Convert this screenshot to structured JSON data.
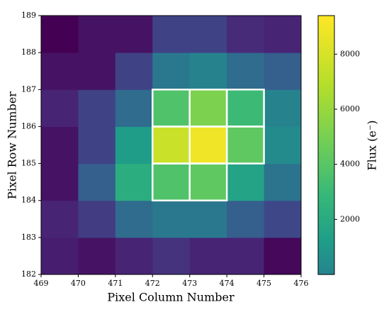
{
  "chart_data": {
    "type": "heatmap",
    "x_label": "Pixel Column Number",
    "y_label": "Pixel Row Number",
    "colorbar_label": "Flux (e⁻)",
    "xlim": [
      469,
      476
    ],
    "ylim": [
      182,
      189
    ],
    "xticks": [
      469,
      470,
      471,
      472,
      473,
      474,
      475,
      476
    ],
    "yticks": [
      182,
      183,
      184,
      185,
      186,
      187,
      188,
      189
    ],
    "colormap": [
      "#440154",
      "#482878",
      "#3e4989",
      "#31688e",
      "#26828e",
      "#1f9e89",
      "#35b779",
      "#6ece58",
      "#b5de2b",
      "#fde725"
    ],
    "norm": "sqrt",
    "zlim": [
      -2350,
      9400
    ],
    "colorbar_range": [
      0,
      9400
    ],
    "colorbar_ticks": [
      2000,
      4000,
      6000,
      8000
    ],
    "z": [
      [
        -2270,
        -2320,
        -2230,
        -2090,
        -2230,
        -2230,
        -2345
      ],
      [
        -2230,
        -1970,
        -910,
        -470,
        -470,
        -1290,
        -1780
      ],
      [
        -2320,
        -1290,
        2170,
        3740,
        4260,
        1600,
        -650
      ],
      [
        -2320,
        -1880,
        1200,
        7600,
        8930,
        4260,
        360
      ],
      [
        -2230,
        -1880,
        -910,
        3740,
        5170,
        3080,
        30
      ],
      [
        -2320,
        -2320,
        -1880,
        -470,
        30,
        -910,
        -1290
      ],
      [
        -2350,
        -2320,
        -2320,
        -1880,
        -1880,
        -2180,
        -2230
      ]
    ],
    "aperture": [
      [
        472,
        184
      ],
      [
        473,
        184
      ],
      [
        472,
        185
      ],
      [
        473,
        185
      ],
      [
        474,
        185
      ],
      [
        472,
        186
      ],
      [
        473,
        186
      ],
      [
        474,
        186
      ]
    ],
    "aperture_color": "#ffffff"
  }
}
